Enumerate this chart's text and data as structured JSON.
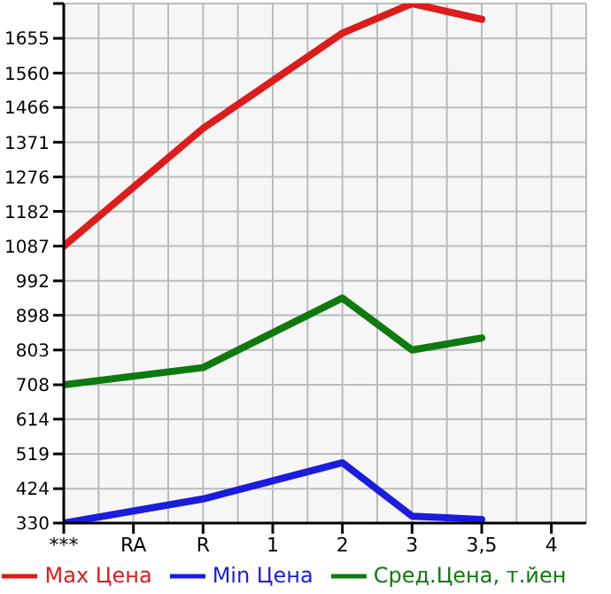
{
  "chart_data": {
    "type": "line",
    "categories": [
      "***",
      "RA",
      "R",
      "1",
      "2",
      "3",
      "3,5",
      "4"
    ],
    "series": [
      {
        "name": "Max Цена",
        "color": "#dd1c1c",
        "values": [
          1087,
          null,
          1409,
          null,
          1669,
          1750,
          1707,
          null
        ]
      },
      {
        "name": "Min Цена",
        "color": "#1c1cdd",
        "values": [
          330,
          null,
          396,
          null,
          495,
          349,
          340,
          null
        ]
      },
      {
        "name": "Сред.Цена, т.йен",
        "color": "#0f7a0f",
        "values": [
          708,
          null,
          755,
          null,
          945,
          803,
          836,
          null
        ]
      }
    ],
    "ylim": [
      330,
      1750
    ],
    "yticks": [
      330,
      424,
      519,
      614,
      708,
      803,
      898,
      992,
      1087,
      1182,
      1276,
      1371,
      1466,
      1560,
      1655,
      {
        "value": 1750,
        "label": null
      }
    ],
    "grid": true,
    "legend": "bottom",
    "marker": "none",
    "line_style": "solid"
  }
}
